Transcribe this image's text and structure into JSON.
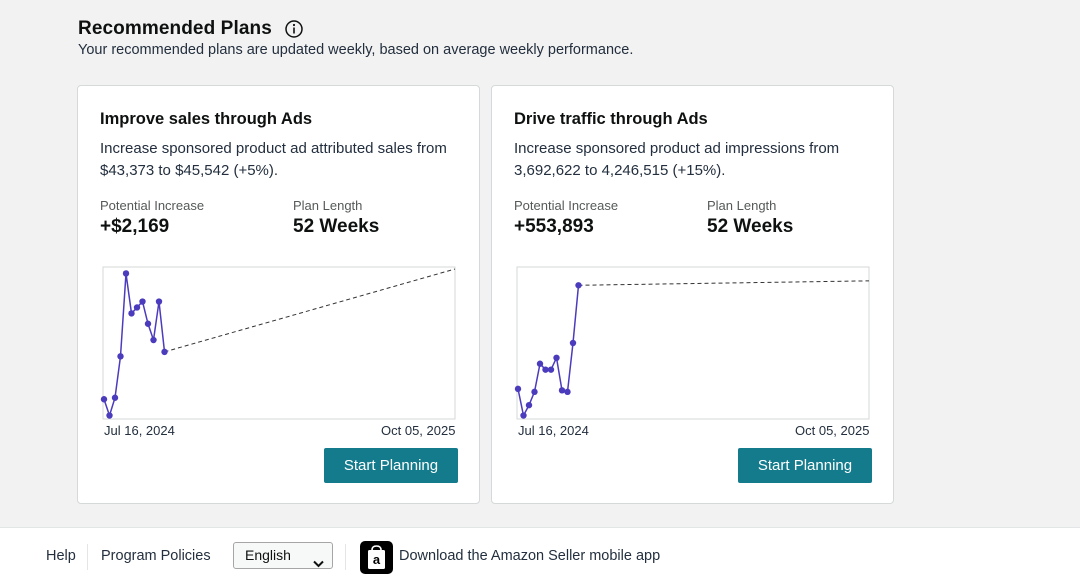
{
  "section": {
    "title": "Recommended Plans",
    "subtitle": "Your recommended plans are updated weekly, based on average weekly performance."
  },
  "icons": {
    "info": "info-circle-icon",
    "chevron": "chevron-down-icon",
    "app": "amazon-a-logo-icon"
  },
  "colors": {
    "button": "#137b8b",
    "line": "#4b3bbd",
    "point": "#4b3bbd"
  },
  "cards": [
    {
      "title": "Improve sales through Ads",
      "description": "Increase sponsored product ad attributed sales from $43,373 to $45,542 (+5%).",
      "potential_label": "Potential Increase",
      "potential_value": "+$2,169",
      "length_label": "Plan Length",
      "length_value": "52 Weeks",
      "x_start": "Jul 16, 2024",
      "x_end": "Oct 05, 2025",
      "button": "Start Planning"
    },
    {
      "title": "Drive traffic through Ads",
      "description": "Increase sponsored product ad impressions from 3,692,622 to 4,246,515 (+15%).",
      "potential_label": "Potential Increase",
      "potential_value": "+553,893",
      "length_label": "Plan Length",
      "length_value": "52 Weeks",
      "x_start": "Jul 16, 2024",
      "x_end": "Oct 05, 2025",
      "button": "Start Planning"
    }
  ],
  "chart_data": [
    {
      "type": "line",
      "x_start": "Jul 16, 2024",
      "x_end": "Oct 05, 2025",
      "actual": [
        0.12,
        0.01,
        0.13,
        0.41,
        0.97,
        0.7,
        0.74,
        0.78,
        0.63,
        0.52,
        0.78,
        0.44
      ],
      "projection": {
        "from_index": 11,
        "end_value": 1.0
      }
    },
    {
      "type": "line",
      "x_start": "Jul 16, 2024",
      "x_end": "Oct 05, 2025",
      "actual": [
        0.19,
        0.01,
        0.08,
        0.17,
        0.36,
        0.32,
        0.32,
        0.4,
        0.18,
        0.17,
        0.5,
        0.89
      ],
      "projection": {
        "from_index": 11,
        "end_value": 0.92
      }
    }
  ],
  "footer": {
    "help": "Help",
    "policies": "Program Policies",
    "language": "English",
    "app_text": "Download the Amazon Seller mobile app"
  }
}
